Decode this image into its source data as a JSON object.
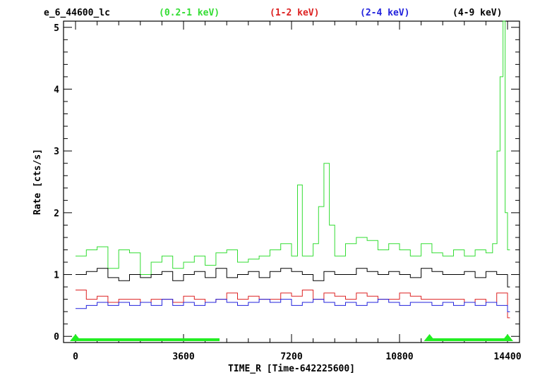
{
  "chart_data": {
    "type": "line",
    "title": "e_6_44600_lc",
    "xlabel": "TIME_R [Time-642225600]",
    "ylabel": "Rate [cts/s]",
    "xlim": [
      -400,
      14800
    ],
    "ylim": [
      -0.1,
      5.1
    ],
    "xticks": [
      0,
      3600,
      7200,
      10800,
      14400
    ],
    "xtick_labels": [
      "0",
      "3600",
      "7200",
      "10800",
      "14400"
    ],
    "yticks": [
      0,
      1,
      2,
      3,
      4,
      5
    ],
    "ytick_labels": [
      "0",
      "1",
      "2",
      "3",
      "4",
      "5"
    ],
    "grid": false,
    "legend": "top",
    "gti": [
      [
        0,
        4800
      ],
      [
        11800,
        14400
      ]
    ],
    "series": [
      {
        "name": "(0.2-1 keV)",
        "color": "#33dd33",
        "x": [
          0,
          360,
          720,
          1080,
          1440,
          1800,
          2160,
          2520,
          2880,
          3240,
          3600,
          3960,
          4320,
          4680,
          5040,
          5400,
          5760,
          6120,
          6480,
          6840,
          7200,
          7400,
          7560,
          7920,
          8100,
          8280,
          8460,
          8640,
          9000,
          9360,
          9720,
          10080,
          10440,
          10800,
          11160,
          11520,
          11880,
          12240,
          12600,
          12960,
          13320,
          13680,
          13900,
          14050,
          14150,
          14250,
          14320,
          14400
        ],
        "values": [
          1.3,
          1.4,
          1.45,
          1.1,
          1.4,
          1.35,
          1.0,
          1.2,
          1.3,
          1.1,
          1.2,
          1.3,
          1.15,
          1.35,
          1.4,
          1.2,
          1.25,
          1.3,
          1.4,
          1.5,
          1.3,
          2.45,
          1.3,
          1.5,
          2.1,
          2.8,
          1.8,
          1.3,
          1.5,
          1.6,
          1.55,
          1.4,
          1.5,
          1.4,
          1.3,
          1.5,
          1.35,
          1.3,
          1.4,
          1.3,
          1.4,
          1.35,
          1.5,
          3.0,
          4.2,
          5.1,
          2.0,
          1.4
        ]
      },
      {
        "name": "(1-2 keV)",
        "color": "#dd2222",
        "x": [
          0,
          360,
          720,
          1080,
          1440,
          1800,
          2160,
          2520,
          2880,
          3240,
          3600,
          3960,
          4320,
          4680,
          5040,
          5400,
          5760,
          6120,
          6480,
          6840,
          7200,
          7560,
          7920,
          8280,
          8640,
          9000,
          9360,
          9720,
          10080,
          10440,
          10800,
          11160,
          11520,
          11880,
          12240,
          12600,
          12960,
          13320,
          13680,
          14040,
          14400
        ],
        "values": [
          0.75,
          0.6,
          0.65,
          0.55,
          0.6,
          0.6,
          0.55,
          0.6,
          0.6,
          0.55,
          0.65,
          0.6,
          0.55,
          0.6,
          0.7,
          0.6,
          0.65,
          0.6,
          0.6,
          0.7,
          0.65,
          0.75,
          0.6,
          0.7,
          0.65,
          0.6,
          0.7,
          0.65,
          0.6,
          0.6,
          0.7,
          0.65,
          0.6,
          0.6,
          0.6,
          0.6,
          0.55,
          0.6,
          0.55,
          0.7,
          0.3
        ]
      },
      {
        "name": "(2-4 keV)",
        "color": "#2222dd",
        "x": [
          0,
          360,
          720,
          1080,
          1440,
          1800,
          2160,
          2520,
          2880,
          3240,
          3600,
          3960,
          4320,
          4680,
          5040,
          5400,
          5760,
          6120,
          6480,
          6840,
          7200,
          7560,
          7920,
          8280,
          8640,
          9000,
          9360,
          9720,
          10080,
          10440,
          10800,
          11160,
          11520,
          11880,
          12240,
          12600,
          12960,
          13320,
          13680,
          14040,
          14400
        ],
        "values": [
          0.45,
          0.5,
          0.55,
          0.5,
          0.55,
          0.5,
          0.55,
          0.5,
          0.6,
          0.5,
          0.55,
          0.5,
          0.55,
          0.6,
          0.55,
          0.5,
          0.55,
          0.6,
          0.55,
          0.6,
          0.5,
          0.55,
          0.6,
          0.55,
          0.5,
          0.55,
          0.5,
          0.55,
          0.6,
          0.55,
          0.5,
          0.55,
          0.55,
          0.5,
          0.55,
          0.5,
          0.55,
          0.5,
          0.55,
          0.5,
          0.4
        ]
      },
      {
        "name": "(4-9 keV)",
        "color": "#000000",
        "x": [
          0,
          360,
          720,
          1080,
          1440,
          1800,
          2160,
          2520,
          2880,
          3240,
          3600,
          3960,
          4320,
          4680,
          5040,
          5400,
          5760,
          6120,
          6480,
          6840,
          7200,
          7560,
          7920,
          8280,
          8640,
          9000,
          9360,
          9720,
          10080,
          10440,
          10800,
          11160,
          11520,
          11880,
          12240,
          12600,
          12960,
          13320,
          13680,
          14040,
          14400
        ],
        "values": [
          1.0,
          1.05,
          1.1,
          0.95,
          0.9,
          1.0,
          0.95,
          1.0,
          1.05,
          0.9,
          1.0,
          1.05,
          0.95,
          1.1,
          0.95,
          1.0,
          1.05,
          0.95,
          1.05,
          1.1,
          1.05,
          1.0,
          0.9,
          1.05,
          1.0,
          1.0,
          1.1,
          1.05,
          1.0,
          1.05,
          1.0,
          0.95,
          1.1,
          1.05,
          1.0,
          1.0,
          1.05,
          0.95,
          1.05,
          1.0,
          0.8
        ]
      }
    ]
  }
}
